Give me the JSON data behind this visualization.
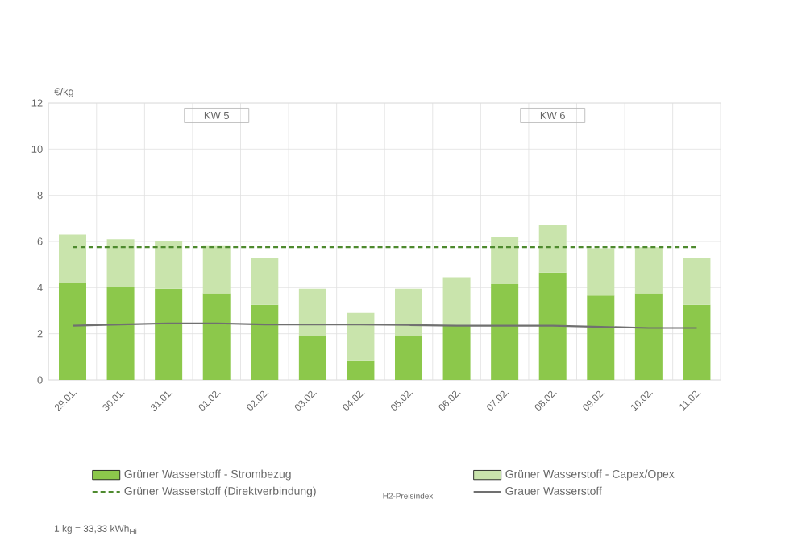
{
  "chart_data": {
    "type": "bar",
    "stacked": true,
    "ylabel": "€/kg",
    "categories": [
      "29.01.",
      "30.01.",
      "31.01.",
      "01.02.",
      "02.02.",
      "03.02.",
      "04.02.",
      "05.02.",
      "06.02.",
      "07.02.",
      "08.02.",
      "09.02.",
      "10.02.",
      "11.02."
    ],
    "series": [
      {
        "name": "Grüner Wasserstoff - Strombezug",
        "color": "#8cc84b",
        "values": [
          4.2,
          4.05,
          3.95,
          3.75,
          3.25,
          1.9,
          0.85,
          1.9,
          2.35,
          4.15,
          4.65,
          3.65,
          3.75,
          3.25
        ]
      },
      {
        "name": "Grüner Wasserstoff - Capex/Opex",
        "color": "#c9e4ac",
        "values": [
          2.1,
          2.05,
          2.05,
          2.05,
          2.05,
          2.05,
          2.05,
          2.05,
          2.1,
          2.05,
          2.05,
          2.05,
          2.0,
          2.05
        ]
      },
      {
        "name": "Grüner Wasserstoff (Direktverbindung)",
        "type": "line",
        "line_style": "dashed",
        "color": "#4e8a2e",
        "values": [
          5.75,
          5.75,
          5.75,
          5.75,
          5.75,
          5.75,
          5.75,
          5.75,
          5.75,
          5.75,
          5.75,
          5.75,
          5.75,
          5.75
        ]
      },
      {
        "name": "Grauer Wasserstoff",
        "type": "line",
        "line_style": "solid",
        "color": "#707070",
        "values": [
          2.35,
          2.4,
          2.45,
          2.45,
          2.4,
          2.4,
          2.4,
          2.38,
          2.35,
          2.35,
          2.35,
          2.3,
          2.25,
          2.25
        ]
      }
    ],
    "ylim": [
      0,
      12
    ],
    "yticks": [
      0,
      2,
      4,
      6,
      8,
      10,
      12
    ],
    "grid": true,
    "legend": "bottom",
    "marker": "none",
    "annotations": [
      "KW 5",
      "KW 6",
      "H2-Preisindex",
      "1 kg = 33,33 kWh$_{Hi}$"
    ]
  }
}
